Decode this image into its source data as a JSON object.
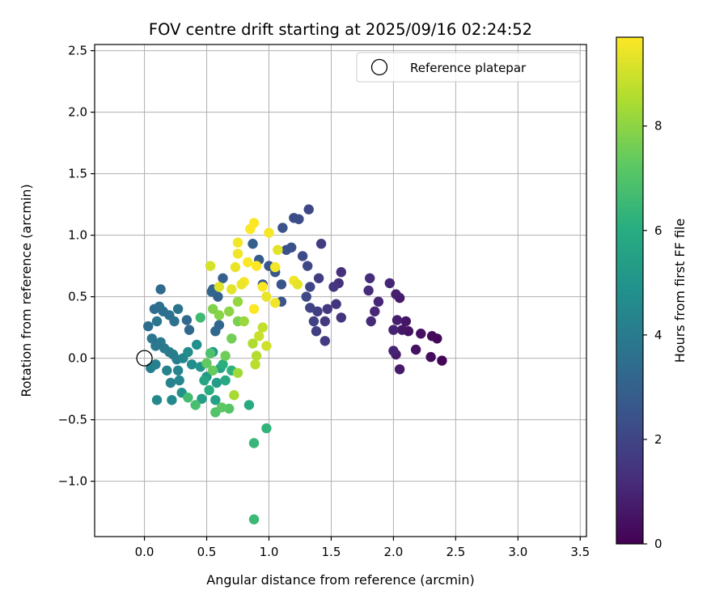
{
  "chart_data": {
    "type": "scatter",
    "title": "FOV centre drift starting at 2025/09/16 02:24:52",
    "xlabel": "Angular distance from reference (arcmin)",
    "ylabel": "Rotation from reference (arcmin)",
    "xlim": [
      -0.4,
      3.55
    ],
    "ylim": [
      -1.45,
      2.55
    ],
    "xticks": [
      0.0,
      0.5,
      1.0,
      1.5,
      2.0,
      2.5,
      3.0,
      3.5
    ],
    "xtick_labels": [
      "0.0",
      "0.5",
      "1.0",
      "1.5",
      "2.0",
      "2.5",
      "3.0",
      "3.5"
    ],
    "yticks": [
      -1.0,
      -0.5,
      0.0,
      0.5,
      1.0,
      1.5,
      2.0,
      2.5
    ],
    "ytick_labels": [
      "−1.0",
      "−0.5",
      "0.0",
      "0.5",
      "1.0",
      "1.5",
      "2.0",
      "2.5"
    ],
    "grid": true,
    "legend": {
      "placement": "top-right",
      "entries": [
        "Reference platepar"
      ]
    },
    "reference_point": {
      "x": 0.0,
      "y": 0.0
    },
    "colorbar": {
      "label": "Hours from first FF file",
      "colormap": "viridis",
      "range": [
        0,
        9.7
      ],
      "ticks": [
        0,
        2,
        4,
        6,
        8
      ],
      "tick_labels": [
        "0",
        "2",
        "4",
        "6",
        "8"
      ]
    },
    "points": [
      [
        2.39,
        -0.02,
        0.1
      ],
      [
        2.35,
        0.16,
        0.2
      ],
      [
        2.31,
        0.18,
        0.25
      ],
      [
        2.3,
        0.01,
        0.3
      ],
      [
        2.22,
        0.2,
        0.4
      ],
      [
        2.18,
        0.07,
        0.45
      ],
      [
        2.12,
        0.22,
        0.5
      ],
      [
        2.1,
        0.3,
        0.55
      ],
      [
        2.07,
        0.23,
        0.6
      ],
      [
        2.05,
        0.49,
        0.65
      ],
      [
        2.05,
        -0.09,
        0.7
      ],
      [
        2.02,
        0.03,
        0.75
      ],
      [
        2.03,
        0.31,
        0.8
      ],
      [
        2.02,
        0.52,
        0.85
      ],
      [
        2.0,
        0.23,
        0.9
      ],
      [
        2.0,
        0.06,
        0.95
      ],
      [
        1.97,
        0.61,
        1.0
      ],
      [
        1.88,
        0.46,
        1.05
      ],
      [
        1.85,
        0.38,
        1.1
      ],
      [
        1.82,
        0.3,
        1.15
      ],
      [
        1.8,
        0.55,
        1.2
      ],
      [
        1.81,
        0.65,
        1.25
      ],
      [
        1.58,
        0.7,
        1.3
      ],
      [
        1.56,
        0.61,
        1.35
      ],
      [
        1.58,
        0.33,
        1.4
      ],
      [
        1.54,
        0.44,
        1.45
      ],
      [
        1.52,
        0.58,
        1.5
      ],
      [
        1.47,
        0.4,
        1.55
      ],
      [
        1.45,
        0.3,
        1.6
      ],
      [
        1.45,
        0.14,
        1.65
      ],
      [
        1.42,
        0.93,
        1.7
      ],
      [
        1.4,
        0.65,
        1.75
      ],
      [
        1.39,
        0.38,
        1.8
      ],
      [
        1.38,
        0.22,
        1.85
      ],
      [
        1.36,
        0.3,
        1.9
      ],
      [
        1.33,
        0.41,
        1.95
      ],
      [
        1.33,
        0.58,
        2.0
      ],
      [
        1.32,
        1.21,
        2.05
      ],
      [
        1.31,
        0.75,
        2.1
      ],
      [
        1.3,
        0.5,
        2.15
      ],
      [
        1.27,
        0.83,
        2.2
      ],
      [
        1.24,
        1.13,
        2.25
      ],
      [
        1.2,
        1.14,
        2.3
      ],
      [
        1.18,
        0.9,
        2.35
      ],
      [
        1.14,
        0.88,
        2.4
      ],
      [
        1.11,
        1.06,
        2.45
      ],
      [
        1.1,
        0.6,
        2.5
      ],
      [
        1.1,
        0.46,
        2.55
      ],
      [
        1.05,
        0.7,
        2.6
      ],
      [
        1.0,
        0.75,
        2.65
      ],
      [
        0.95,
        0.6,
        2.7
      ],
      [
        0.92,
        0.8,
        2.8
      ],
      [
        0.87,
        0.93,
        2.9
      ],
      [
        0.63,
        0.65,
        2.95
      ],
      [
        0.59,
        0.5,
        3.0
      ],
      [
        0.55,
        0.56,
        3.05
      ],
      [
        0.54,
        0.54,
        3.1
      ],
      [
        0.6,
        0.27,
        3.15
      ],
      [
        0.57,
        0.22,
        3.2
      ],
      [
        0.36,
        0.23,
        3.25
      ],
      [
        0.34,
        0.31,
        3.3
      ],
      [
        0.13,
        0.56,
        3.35
      ],
      [
        0.03,
        0.26,
        3.4
      ],
      [
        0.08,
        0.4,
        3.45
      ],
      [
        0.12,
        0.42,
        3.5
      ],
      [
        0.15,
        0.38,
        3.55
      ],
      [
        0.2,
        0.35,
        3.6
      ],
      [
        0.24,
        0.3,
        3.65
      ],
      [
        0.27,
        0.4,
        3.7
      ],
      [
        0.1,
        0.3,
        3.75
      ],
      [
        0.06,
        0.16,
        3.8
      ],
      [
        0.09,
        0.1,
        3.85
      ],
      [
        0.13,
        0.13,
        3.9
      ],
      [
        0.16,
        0.08,
        3.95
      ],
      [
        0.2,
        0.05,
        4.0
      ],
      [
        0.23,
        0.03,
        4.05
      ],
      [
        0.26,
        -0.01,
        4.1
      ],
      [
        0.05,
        -0.08,
        4.15
      ],
      [
        0.09,
        -0.05,
        4.2
      ],
      [
        0.18,
        -0.1,
        4.25
      ],
      [
        0.21,
        -0.2,
        4.3
      ],
      [
        0.27,
        -0.1,
        4.35
      ],
      [
        0.31,
        0.0,
        4.4
      ],
      [
        0.28,
        -0.18,
        4.45
      ],
      [
        0.1,
        -0.34,
        4.5
      ],
      [
        0.22,
        -0.34,
        4.55
      ],
      [
        0.35,
        0.05,
        4.6
      ],
      [
        0.38,
        -0.05,
        4.7
      ],
      [
        0.42,
        0.11,
        4.8
      ],
      [
        0.3,
        -0.28,
        4.9
      ],
      [
        0.45,
        -0.07,
        5.0
      ],
      [
        0.55,
        0.05,
        5.1
      ],
      [
        0.5,
        -0.15,
        5.2
      ],
      [
        0.58,
        -0.2,
        5.3
      ],
      [
        0.46,
        -0.33,
        5.4
      ],
      [
        0.57,
        -0.34,
        5.5
      ],
      [
        0.61,
        -0.08,
        5.6
      ],
      [
        0.48,
        -0.18,
        5.7
      ],
      [
        0.65,
        -0.18,
        5.8
      ],
      [
        0.84,
        -0.38,
        5.9
      ],
      [
        0.52,
        -0.26,
        6.0
      ],
      [
        0.63,
        -0.05,
        6.1
      ],
      [
        0.7,
        -0.1,
        6.2
      ],
      [
        0.98,
        -0.57,
        6.3
      ],
      [
        0.88,
        -0.69,
        6.4
      ],
      [
        0.88,
        -1.31,
        6.5
      ],
      [
        0.45,
        0.33,
        6.6
      ],
      [
        0.35,
        -0.32,
        6.7
      ],
      [
        0.41,
        -0.38,
        6.8
      ],
      [
        0.53,
        0.04,
        6.9
      ],
      [
        0.57,
        -0.44,
        7.0
      ],
      [
        0.68,
        -0.41,
        7.1
      ],
      [
        0.62,
        -0.4,
        7.2
      ],
      [
        0.5,
        -0.04,
        7.3
      ],
      [
        0.55,
        -0.1,
        7.4
      ],
      [
        0.65,
        0.02,
        7.5
      ],
      [
        0.7,
        0.16,
        7.6
      ],
      [
        0.75,
        0.3,
        7.7
      ],
      [
        0.55,
        0.4,
        7.8
      ],
      [
        0.6,
        0.35,
        7.9
      ],
      [
        0.68,
        0.38,
        8.0
      ],
      [
        0.75,
        0.46,
        8.1
      ],
      [
        0.8,
        0.3,
        8.2
      ],
      [
        0.75,
        -0.12,
        8.3
      ],
      [
        0.72,
        -0.3,
        8.4
      ],
      [
        0.87,
        0.12,
        8.5
      ],
      [
        0.9,
        0.02,
        8.6
      ],
      [
        0.89,
        -0.05,
        8.7
      ],
      [
        0.95,
        0.25,
        8.8
      ],
      [
        0.92,
        0.18,
        8.9
      ],
      [
        0.98,
        0.1,
        9.0
      ],
      [
        0.53,
        0.75,
        9.1
      ],
      [
        0.6,
        0.58,
        9.2
      ],
      [
        0.7,
        0.56,
        9.3
      ],
      [
        0.73,
        0.74,
        9.4
      ],
      [
        0.75,
        0.85,
        9.5
      ],
      [
        0.75,
        0.94,
        9.55
      ],
      [
        0.8,
        0.62,
        9.6
      ],
      [
        0.83,
        0.78,
        9.65
      ],
      [
        0.85,
        1.05,
        9.65
      ],
      [
        0.88,
        1.1,
        9.7
      ],
      [
        0.88,
        0.4,
        9.7
      ],
      [
        0.9,
        0.75,
        9.7
      ],
      [
        0.95,
        0.58,
        9.68
      ],
      [
        1.0,
        1.02,
        9.6
      ],
      [
        1.05,
        0.74,
        9.55
      ],
      [
        1.05,
        0.45,
        9.5
      ],
      [
        1.2,
        0.63,
        9.5
      ],
      [
        0.78,
        0.6,
        9.45
      ],
      [
        0.98,
        0.5,
        9.4
      ],
      [
        1.23,
        0.6,
        9.35
      ],
      [
        1.07,
        0.88,
        9.3
      ]
    ]
  }
}
